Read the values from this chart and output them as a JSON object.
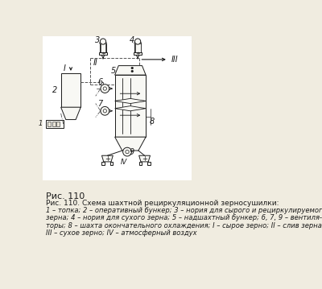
{
  "title": "Рис. 110",
  "caption_title": "Рис. 110. Схема шахтной рециркуляционной зерносушилки:",
  "caption_line1": "1 – топка; 2 – оперативный бункер; 3 – нория для сырого и рециркулируемого",
  "caption_line2": "зерна; 4 – нория для сухого зерна; 5 – надшахтный бункер; 6, 7, 9 – вентиля-",
  "caption_line3": "торы; 8 – шахта окончательного охлаждения; I – сырое зерно; II – слив зерна;",
  "caption_line4": "III – сухое зерно; IV – атмосферный воздух",
  "bg_color": "#f0ece0",
  "line_color": "#1a1a1a",
  "text_color": "#1a1a1a",
  "fill_color": "#ffffff",
  "fill_light": "#f8f8f4"
}
